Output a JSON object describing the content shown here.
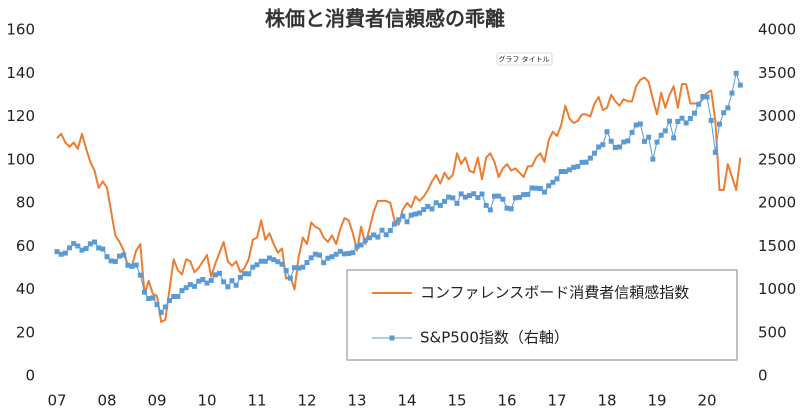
{
  "chart_data": {
    "type": "line",
    "title": "株価と消費者信頼感の乖離",
    "tooltip": "グラフ タイトル",
    "categories": [
      "07",
      null,
      null,
      null,
      null,
      null,
      null,
      null,
      null,
      null,
      null,
      null,
      "08",
      null,
      null,
      null,
      null,
      null,
      null,
      null,
      null,
      null,
      null,
      null,
      "09",
      null,
      null,
      null,
      null,
      null,
      null,
      null,
      null,
      null,
      null,
      null,
      "10",
      null,
      null,
      null,
      null,
      null,
      null,
      null,
      null,
      null,
      null,
      null,
      "11",
      null,
      null,
      null,
      null,
      null,
      null,
      null,
      null,
      null,
      null,
      null,
      "12",
      null,
      null,
      null,
      null,
      null,
      null,
      null,
      null,
      null,
      null,
      null,
      "13",
      null,
      null,
      null,
      null,
      null,
      null,
      null,
      null,
      null,
      null,
      null,
      "14",
      null,
      null,
      null,
      null,
      null,
      null,
      null,
      null,
      null,
      null,
      null,
      "15",
      null,
      null,
      null,
      null,
      null,
      null,
      null,
      null,
      null,
      null,
      null,
      "16",
      null,
      null,
      null,
      null,
      null,
      null,
      null,
      null,
      null,
      null,
      null,
      "17",
      null,
      null,
      null,
      null,
      null,
      null,
      null,
      null,
      null,
      null,
      null,
      "18",
      null,
      null,
      null,
      null,
      null,
      null,
      null,
      null,
      null,
      null,
      null,
      "19",
      null,
      null,
      null,
      null,
      null,
      null,
      null,
      null,
      null,
      null,
      null,
      "20",
      null,
      null,
      null,
      null,
      null,
      null,
      null,
      null
    ],
    "series": [
      {
        "name": "コンファレンスボード消費者信頼感指数",
        "color": "#ed7d31",
        "axis": "y",
        "marker": false,
        "values": [
          110,
          112,
          108,
          106,
          108,
          105,
          112,
          105,
          99,
          95,
          87,
          90,
          87,
          76,
          65,
          62,
          58,
          51,
          51,
          58,
          61,
          38,
          44,
          38,
          37,
          25,
          26,
          40,
          54,
          49,
          47,
          54,
          53,
          48,
          50,
          53,
          56,
          46,
          52,
          57,
          62,
          53,
          51,
          53,
          48,
          50,
          54,
          63,
          64,
          72,
          63,
          66,
          61,
          57,
          59,
          45,
          46,
          40,
          55,
          64,
          61,
          71,
          69,
          68,
          64,
          62,
          65,
          61,
          68,
          73,
          72,
          66,
          58,
          69,
          61,
          68,
          76,
          81,
          81,
          81,
          80,
          72,
          70,
          77,
          80,
          78,
          83,
          81,
          83,
          86,
          90,
          93,
          89,
          94,
          91,
          93,
          103,
          98,
          101,
          95,
          94,
          101,
          91,
          101,
          103,
          99,
          92,
          96,
          98,
          95,
          96,
          94,
          92,
          97,
          97,
          101,
          103,
          99,
          109,
          113,
          111,
          116,
          125,
          119,
          117,
          118,
          121,
          121,
          120,
          126,
          129,
          123,
          124,
          130,
          127,
          125,
          128,
          127,
          127,
          134,
          137,
          138,
          136,
          128,
          121,
          131,
          124,
          130,
          134,
          124,
          135,
          135,
          126,
          126,
          126,
          128,
          131,
          132,
          118,
          86,
          86,
          98,
          92,
          86,
          101
        ]
      },
      {
        "name": "S&P500指数（右軸）",
        "color": "#5b9bd5",
        "axis": "y2",
        "marker": true,
        "values": [
          1438,
          1407,
          1421,
          1482,
          1531,
          1503,
          1455,
          1474,
          1527,
          1549,
          1481,
          1468,
          1379,
          1331,
          1323,
          1386,
          1400,
          1280,
          1267,
          1283,
          1166,
          969,
          896,
          903,
          826,
          735,
          798,
          873,
          919,
          919,
          987,
          1021,
          1057,
          1036,
          1096,
          1115,
          1074,
          1104,
          1169,
          1187,
          1089,
          1031,
          1102,
          1049,
          1141,
          1183,
          1181,
          1258,
          1286,
          1327,
          1326,
          1364,
          1345,
          1321,
          1292,
          1219,
          1131,
          1253,
          1247,
          1258,
          1312,
          1366,
          1408,
          1398,
          1310,
          1362,
          1379,
          1407,
          1441,
          1412,
          1416,
          1426,
          1498,
          1515,
          1569,
          1598,
          1631,
          1606,
          1686,
          1633,
          1682,
          1757,
          1806,
          1848,
          1783,
          1859,
          1872,
          1884,
          1924,
          1960,
          1931,
          2003,
          1972,
          2018,
          2068,
          2059,
          1995,
          2105,
          2068,
          2086,
          2107,
          2063,
          2104,
          1972,
          1920,
          2079,
          2080,
          2044,
          1940,
          1932,
          2060,
          2065,
          2097,
          2099,
          2174,
          2171,
          2168,
          2126,
          2199,
          2239,
          2279,
          2364,
          2363,
          2384,
          2412,
          2423,
          2470,
          2472,
          2519,
          2575,
          2648,
          2674,
          2824,
          2714,
          2641,
          2648,
          2705,
          2718,
          2816,
          2902,
          2914,
          2712,
          2760,
          2507,
          2704,
          2784,
          2834,
          2946,
          2752,
          2942,
          2980,
          2926,
          2977,
          3038,
          3141,
          3231,
          3226,
          2954,
          2585,
          2912,
          3044,
          3100,
          3271,
          3500,
          3363
        ]
      }
    ],
    "ylim": [
      0,
      160
    ],
    "yticks": [
      0,
      20,
      40,
      60,
      80,
      100,
      120,
      140,
      160
    ],
    "y2lim": [
      0,
      4000
    ],
    "y2ticks": [
      0,
      500,
      1000,
      1500,
      2000,
      2500,
      3000,
      3500,
      4000
    ],
    "legend": "bottom-right"
  }
}
